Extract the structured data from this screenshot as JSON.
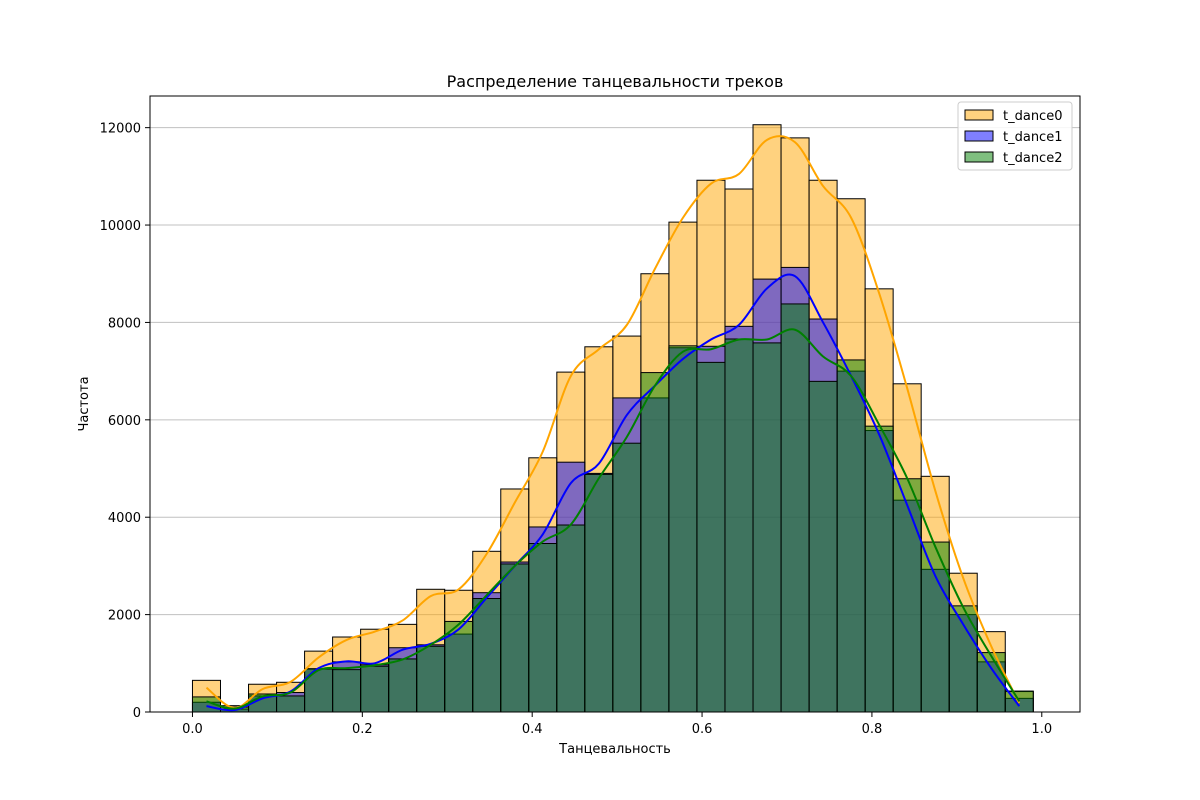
{
  "chart_data": {
    "type": "bar",
    "title": "Распределение танцевальности треков",
    "xlabel": "Танцевальность",
    "ylabel": "Частота",
    "xlim": [
      -0.05,
      1.045
    ],
    "ylim": [
      0,
      12650
    ],
    "x_ticks": [
      0.0,
      0.2,
      0.4,
      0.6,
      0.8,
      1.0
    ],
    "x_tick_labels": [
      "0.0",
      "0.2",
      "0.4",
      "0.6",
      "0.8",
      "1.0"
    ],
    "y_ticks": [
      0,
      2000,
      4000,
      6000,
      8000,
      10000,
      12000
    ],
    "y_tick_labels": [
      "0",
      "2000",
      "4000",
      "6000",
      "8000",
      "10000",
      "12000"
    ],
    "grid": "y",
    "legend_position": "top-right",
    "bin_edges": [
      0.0,
      0.033,
      0.066,
      0.099,
      0.132,
      0.165,
      0.198,
      0.231,
      0.264,
      0.297,
      0.33,
      0.363,
      0.396,
      0.429,
      0.462,
      0.495,
      0.528,
      0.561,
      0.594,
      0.627,
      0.66,
      0.693,
      0.726,
      0.759,
      0.792,
      0.825,
      0.858,
      0.891,
      0.924,
      0.957,
      0.99
    ],
    "series": [
      {
        "name": "t_dance0",
        "color": "#ffa500",
        "fill": "rgba(255,165,0,0.5)",
        "values": [
          650,
          130,
          570,
          610,
          1250,
          1540,
          1700,
          1800,
          2520,
          2500,
          3300,
          4580,
          5220,
          6980,
          7500,
          7720,
          9000,
          10060,
          10920,
          10740,
          12060,
          11790,
          10920,
          10540,
          8690,
          6740,
          4840,
          2850,
          1650,
          420
        ],
        "kde": [
          500,
          80,
          470,
          620,
          1120,
          1480,
          1650,
          1880,
          2380,
          2520,
          3250,
          4300,
          5350,
          6900,
          7450,
          7950,
          9100,
          10150,
          10850,
          11050,
          11750,
          11700,
          10800,
          10150,
          8600,
          6650,
          4550,
          2750,
          1350,
          180
        ]
      },
      {
        "name": "t_dance1",
        "color": "#0000ff",
        "fill": "rgba(0,0,255,0.5)",
        "values": [
          200,
          60,
          330,
          400,
          880,
          1030,
          970,
          1320,
          1380,
          1600,
          2450,
          3080,
          3800,
          5130,
          4900,
          6450,
          6450,
          7480,
          7510,
          7920,
          8890,
          9130,
          8070,
          7000,
          5780,
          4350,
          2930,
          2000,
          1030,
          280
        ],
        "kde": [
          120,
          40,
          280,
          420,
          900,
          1040,
          1000,
          1280,
          1400,
          1700,
          2350,
          3000,
          3650,
          4700,
          5100,
          6100,
          6700,
          7250,
          7650,
          7950,
          8700,
          8950,
          8000,
          6900,
          5700,
          4250,
          2800,
          1800,
          900,
          120
        ]
      },
      {
        "name": "t_dance2",
        "color": "#008000",
        "fill": "rgba(0,128,0,0.5)",
        "values": [
          310,
          100,
          370,
          330,
          890,
          870,
          940,
          1090,
          1350,
          1860,
          2330,
          3040,
          3460,
          3840,
          4880,
          5520,
          6970,
          7520,
          7180,
          7660,
          7580,
          8380,
          6790,
          7230,
          5870,
          4790,
          3490,
          2180,
          1220,
          430
        ],
        "kde": [
          220,
          70,
          320,
          400,
          860,
          900,
          960,
          1080,
          1380,
          1800,
          2400,
          3000,
          3500,
          3850,
          4800,
          5650,
          6700,
          7400,
          7450,
          7650,
          7650,
          7850,
          7300,
          6900,
          5900,
          4800,
          3400,
          2150,
          1150,
          220
        ]
      }
    ]
  }
}
